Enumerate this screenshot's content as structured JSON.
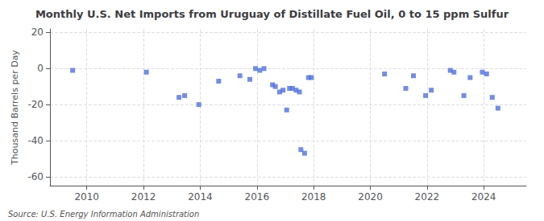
{
  "chart_data": {
    "type": "scatter",
    "title": "Monthly U.S. Net Imports from Uruguay of Distillate Fuel Oil, 0 to 15 ppm Sulfur",
    "ylabel": "Thousand Barrels per Day",
    "annotations": [
      "Source: U.S. Energy Information Administration"
    ],
    "marker": "square",
    "grid": true,
    "xlim": [
      2008.7,
      2025.5
    ],
    "xticks": [
      2010,
      2012,
      2014,
      2016,
      2018,
      2020,
      2022,
      2024
    ],
    "ylim": [
      -65,
      22
    ],
    "yticks": [
      -60,
      -40,
      -20,
      0,
      20
    ],
    "x": [
      2009.5,
      2012.1,
      2013.25,
      2013.45,
      2013.95,
      2014.65,
      2015.4,
      2015.75,
      2015.95,
      2016.1,
      2016.25,
      2016.55,
      2016.65,
      2016.8,
      2016.92,
      2017.05,
      2017.15,
      2017.25,
      2017.38,
      2017.5,
      2017.55,
      2017.68,
      2017.82,
      2017.92,
      2020.5,
      2021.25,
      2021.52,
      2021.95,
      2022.15,
      2022.82,
      2022.95,
      2023.3,
      2023.52,
      2023.95,
      2024.1,
      2024.3,
      2024.5
    ],
    "values": [
      -1,
      -2,
      -16,
      -15,
      -20,
      -7,
      -4,
      -6,
      0,
      -1,
      0,
      -9,
      -10,
      -13,
      -12,
      -23,
      -11,
      -11,
      -12,
      -13,
      -45,
      -47,
      -5,
      -5,
      -3,
      -11,
      -4,
      -15,
      -12,
      -1,
      -2,
      -15,
      -5,
      -2,
      -3,
      -16,
      -22
    ]
  }
}
